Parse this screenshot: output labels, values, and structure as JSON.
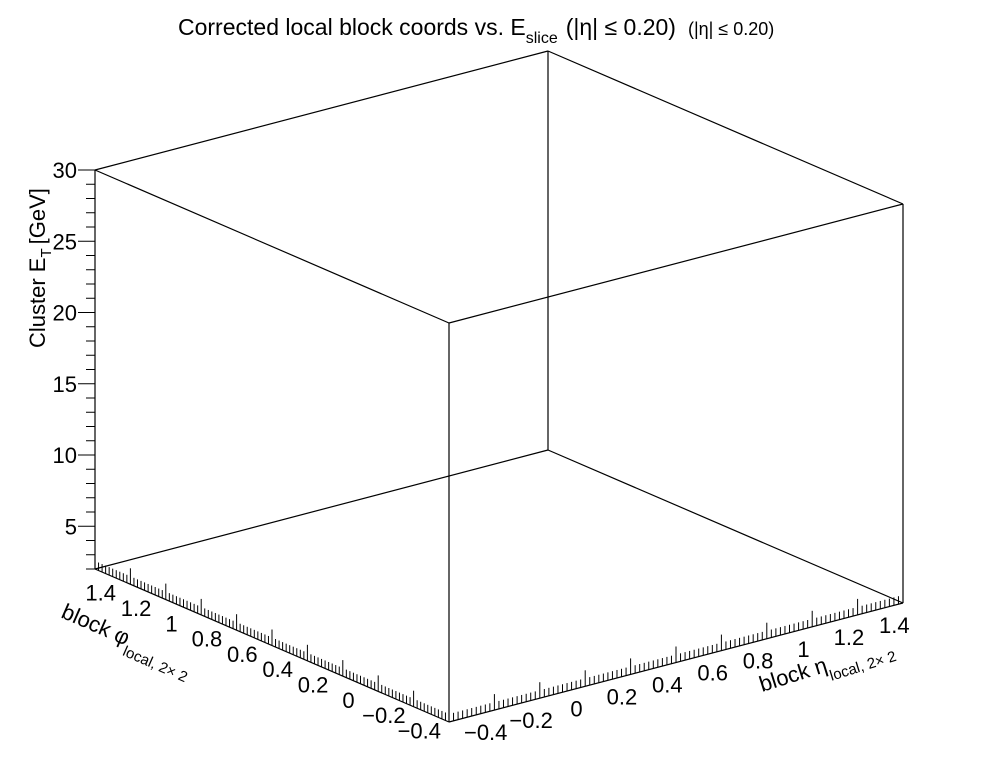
{
  "chart_data": {
    "type": "scatter",
    "title": {
      "main": "Corrected local block coords vs. E",
      "main_sub": "slice",
      "range": "(|η| ≤ 0.20)",
      "note": "(|η| ≤ 0.20)"
    },
    "axes": {
      "x": {
        "label_main": "block η",
        "label_sub": "local, 2× 2",
        "range": [
          -0.5,
          1.5
        ],
        "ticks": [
          "−0.4",
          "−0.2",
          "0",
          "0.2",
          "0.4",
          "0.6",
          "0.8",
          "1",
          "1.2",
          "1.4"
        ]
      },
      "y": {
        "label_main": "block φ",
        "label_sub": "local, 2× 2",
        "range": [
          -0.5,
          1.5
        ],
        "ticks": [
          "−0.4",
          "−0.2",
          "0",
          "0.2",
          "0.4",
          "0.6",
          "0.8",
          "1",
          "1.2",
          "1.4"
        ]
      },
      "z": {
        "label_main": "Cluster E",
        "label_sub": "T",
        "label_unit": "[GeV]",
        "range": [
          2,
          30
        ],
        "ticks": [
          "5",
          "10",
          "15",
          "20",
          "25",
          "30"
        ]
      }
    },
    "points": [],
    "grid": false
  }
}
